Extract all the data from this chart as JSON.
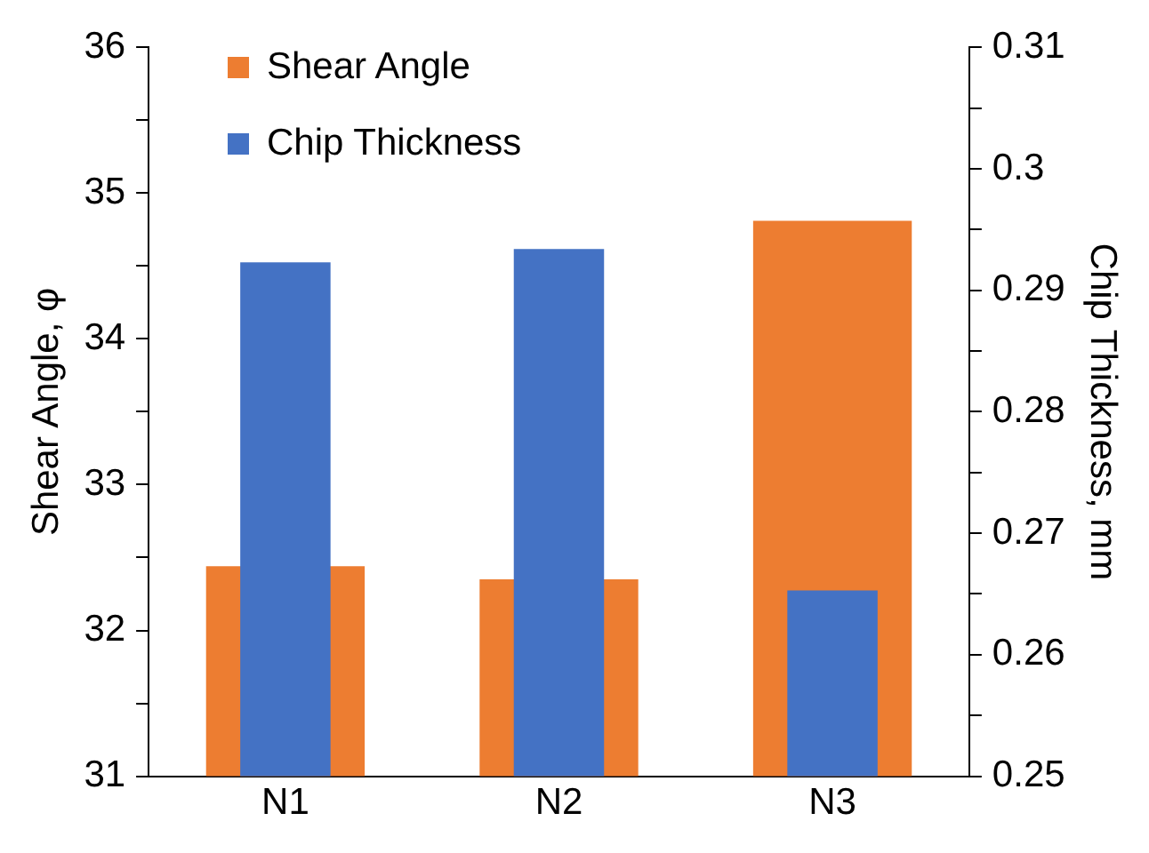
{
  "chart_data": {
    "type": "bar",
    "categories": [
      "N1",
      "N2",
      "N3"
    ],
    "ylabel": "Shear Angle, φ",
    "y2label": "Chip Thickness, mm",
    "series": [
      {
        "name": "Shear Angle",
        "color": "#ed7d31",
        "values": [
          32.44,
          32.35,
          34.81
        ]
      },
      {
        "name": "Chip Thickness",
        "color": "#4472c4",
        "values": [
          0.2923,
          0.2934,
          0.2653
        ],
        "axis": "y2"
      }
    ],
    "ylim": [
      31,
      36
    ],
    "yticks": [
      31,
      {
        "value": 31.5,
        "label": null
      },
      32,
      {
        "value": 32.5,
        "label": null
      },
      33,
      {
        "value": 33.5,
        "label": null
      },
      34,
      {
        "value": 34.5,
        "label": null
      },
      35,
      {
        "value": 35.5,
        "label": null
      },
      36
    ],
    "y2lim": [
      0.25,
      0.31
    ],
    "y2ticks": [
      0.25,
      {
        "value": 0.255,
        "label": null
      },
      0.26,
      {
        "value": 0.265,
        "label": null
      },
      0.27,
      {
        "value": 0.275,
        "label": null
      },
      0.28,
      {
        "value": 0.285,
        "label": null
      },
      0.29,
      {
        "value": 0.295,
        "label": null
      },
      0.3,
      {
        "value": 0.305,
        "label": null
      },
      0.31
    ],
    "grid": false,
    "legend": "top left"
  }
}
